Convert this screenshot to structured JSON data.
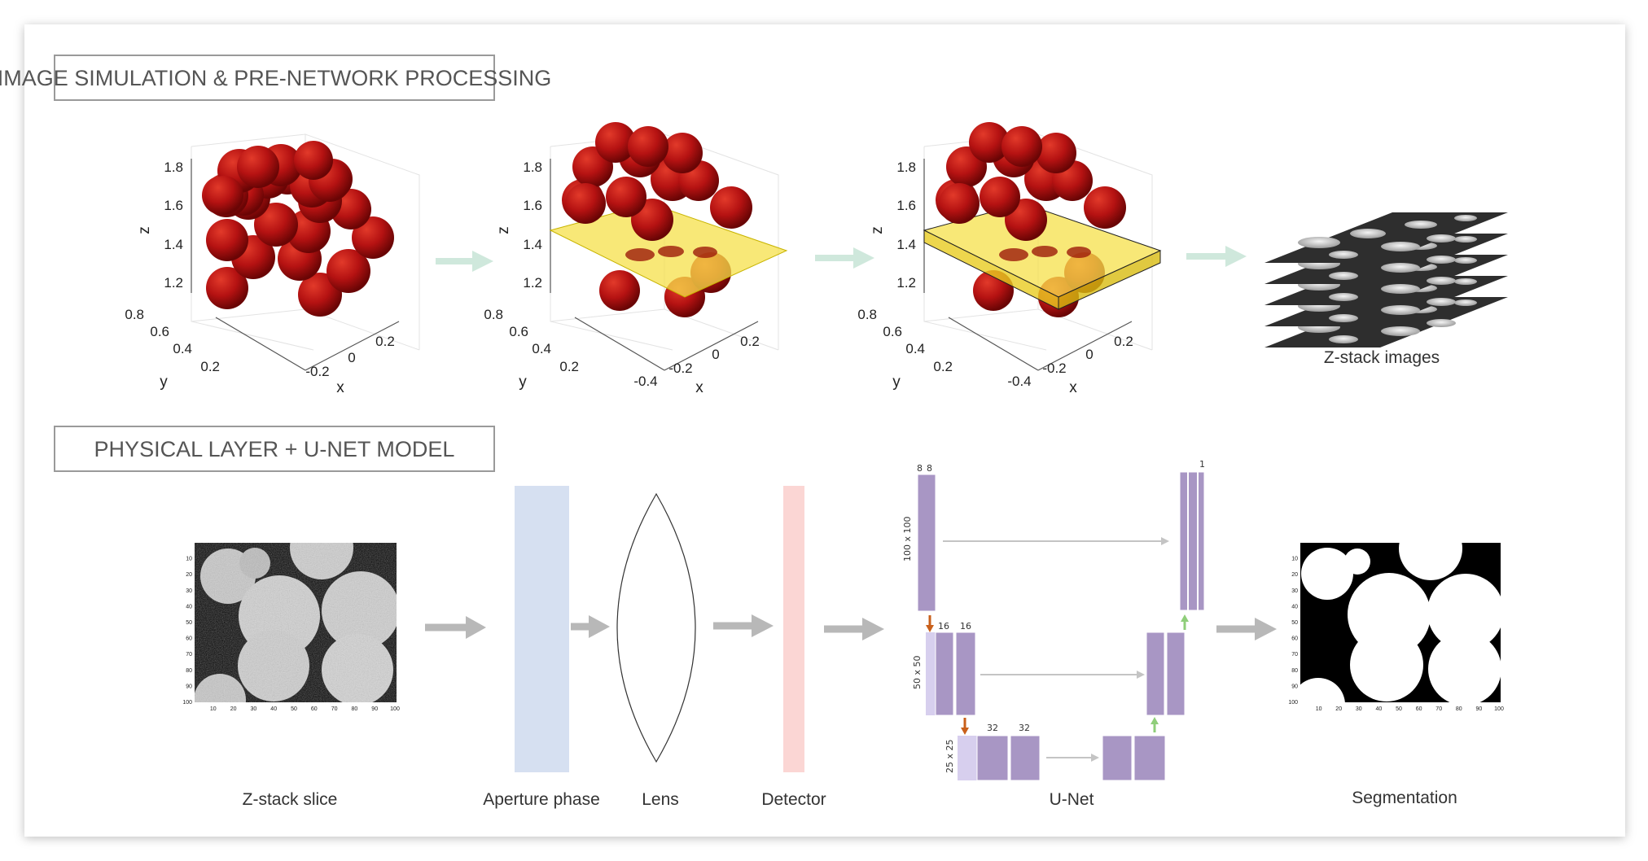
{
  "sections": {
    "top_title": "IMAGE SIMULATION & PRE-NETWORK PROCESSING",
    "bottom_title": "PHYSICAL LAYER + U-NET MODEL"
  },
  "plots3d": {
    "z_axis_label": "z",
    "y_axis_label": "y",
    "x_axis_label": "x",
    "z_ticks": [
      "1.2",
      "1.4",
      "1.6",
      "1.8"
    ],
    "y_ticks": [
      "0.2",
      "0.4",
      "0.6",
      "0.8"
    ],
    "x_ticks_1": [
      "-0.2",
      "0",
      "0.2"
    ],
    "x_ticks_2": [
      "-0.4",
      "-0.2",
      "0",
      "0.2"
    ]
  },
  "labels": {
    "zstack_images": "Z-stack images",
    "zstack_slice": "Z-stack slice",
    "aperture": "Aperture phase",
    "lens": "Lens",
    "detector": "Detector",
    "unet": "U-Net",
    "segmentation": "Segmentation"
  },
  "unet": {
    "c8a": "8",
    "c8b": "8",
    "c1": "1",
    "c16a": "16",
    "c16b": "16",
    "c32a": "32",
    "c32b": "32",
    "size100": "100 x 100",
    "size50": "50 x 50",
    "size25": "25 x 25"
  },
  "image_axes": {
    "x_ticks": [
      "10",
      "20",
      "30",
      "40",
      "50",
      "60",
      "70",
      "80",
      "90",
      "100"
    ],
    "y_ticks": [
      "10",
      "20",
      "30",
      "40",
      "50",
      "60",
      "70",
      "80",
      "90",
      "100"
    ]
  },
  "colors": {
    "sphere": "#b01010",
    "plane": "#f5e04a",
    "aperture": "#d6e0f1",
    "detector": "#fbd6d4",
    "unet_block": "#a896c4",
    "unet_light": "#d7cfee",
    "arrow_gray": "#b8b8b8",
    "arrow_green": "#cfe8dc",
    "arrow_orange": "#c9601b",
    "arrow_lightgreen": "#8fce7a"
  }
}
